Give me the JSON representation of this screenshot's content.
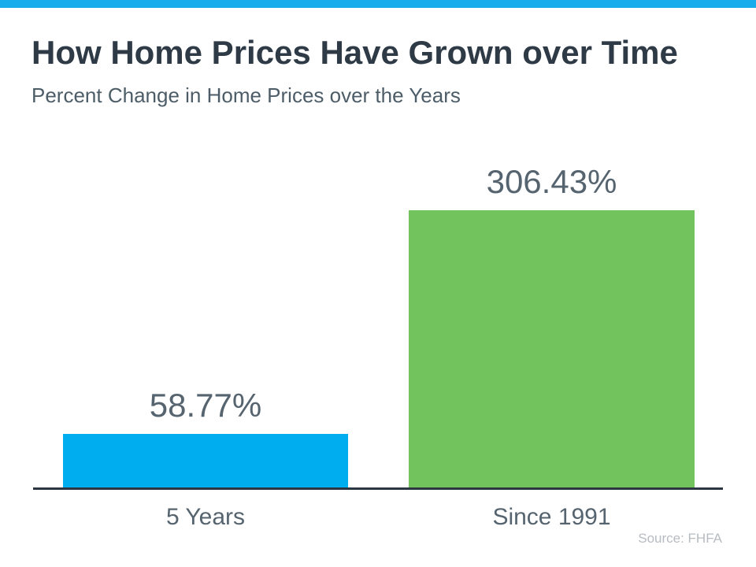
{
  "header": {
    "title": "How Home Prices Have Grown over Time",
    "subtitle": "Percent Change in Home Prices over the Years"
  },
  "footer": {
    "source": "Source: FHFA"
  },
  "colors": {
    "accent_strip": "#18ACEC",
    "bar_blue": "#00ADEF",
    "bar_green": "#72C25E",
    "title_text": "#2E3A46",
    "subtitle_text": "#4D5D68",
    "label_text": "#56646F",
    "axis_line": "#2B3642",
    "source_text": "#B6BCC2"
  },
  "chart_data": {
    "type": "bar",
    "title": "How Home Prices Have Grown over Time",
    "subtitle": "Percent Change in Home Prices over the Years",
    "categories": [
      "5 Years",
      "Since 1991"
    ],
    "values": [
      58.77,
      306.43
    ],
    "value_labels": [
      "58.77%",
      "306.43%"
    ],
    "bar_colors": [
      "#00ADEF",
      "#72C25E"
    ],
    "xlabel": "",
    "ylabel": "",
    "ylim": [
      0,
      306.43
    ],
    "grid": false,
    "legend": false,
    "value_labels_position": "above-bars",
    "source": "Source: FHFA"
  }
}
